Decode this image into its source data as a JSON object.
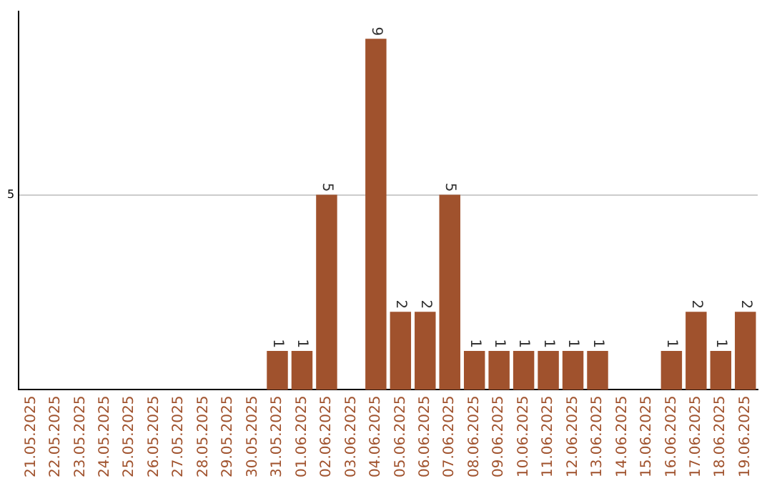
{
  "chart_data": {
    "type": "bar",
    "categories": [
      "21.05.2025",
      "22.05.2025",
      "23.05.2025",
      "24.05.2025",
      "25.05.2025",
      "26.05.2025",
      "27.05.2025",
      "28.05.2025",
      "29.05.2025",
      "30.05.2025",
      "31.05.2025",
      "01.06.2025",
      "02.06.2025",
      "03.06.2025",
      "04.06.2025",
      "05.06.2025",
      "06.06.2025",
      "07.06.2025",
      "08.06.2025",
      "09.06.2025",
      "10.06.2025",
      "11.06.2025",
      "12.06.2025",
      "13.06.2025",
      "14.06.2025",
      "15.06.2025",
      "16.06.2025",
      "17.06.2025",
      "18.06.2025",
      "19.06.2025"
    ],
    "values": [
      0,
      0,
      0,
      0,
      0,
      0,
      0,
      0,
      0,
      0,
      1,
      1,
      5,
      0,
      9,
      2,
      2,
      5,
      1,
      1,
      1,
      1,
      1,
      1,
      0,
      0,
      1,
      2,
      1,
      2
    ],
    "value_labels": [
      null,
      null,
      null,
      null,
      null,
      null,
      null,
      null,
      null,
      null,
      "1",
      "1",
      "5",
      null,
      "9",
      "2",
      "2",
      "5",
      "1",
      "1",
      "1",
      "1",
      "1",
      "1",
      null,
      null,
      "1",
      "2",
      "1",
      "2"
    ],
    "color": "#a0522d",
    "ylim": [
      0,
      9.7
    ],
    "yticks": [
      5
    ],
    "grid": "y",
    "legend": false
  }
}
